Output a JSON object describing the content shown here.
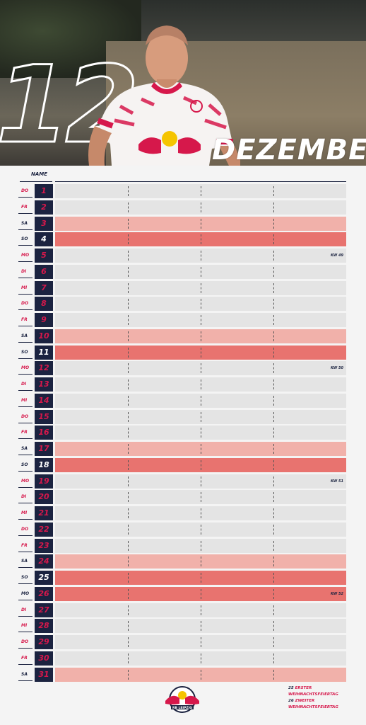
{
  "header": {
    "month_number": "12",
    "month_name": "DEZEMBER",
    "name_label": "NAME"
  },
  "days": [
    {
      "wd": "DO",
      "num": "1",
      "type": "wk"
    },
    {
      "wd": "FR",
      "num": "2",
      "type": "wk"
    },
    {
      "wd": "SA",
      "num": "3",
      "type": "sa"
    },
    {
      "wd": "SO",
      "num": "4",
      "type": "so"
    },
    {
      "wd": "MO",
      "num": "5",
      "type": "wk",
      "kw": "KW 49"
    },
    {
      "wd": "DI",
      "num": "6",
      "type": "wk"
    },
    {
      "wd": "MI",
      "num": "7",
      "type": "wk"
    },
    {
      "wd": "DO",
      "num": "8",
      "type": "wk"
    },
    {
      "wd": "FR",
      "num": "9",
      "type": "wk"
    },
    {
      "wd": "SA",
      "num": "10",
      "type": "sa"
    },
    {
      "wd": "SO",
      "num": "11",
      "type": "so"
    },
    {
      "wd": "MO",
      "num": "12",
      "type": "wk",
      "kw": "KW 50"
    },
    {
      "wd": "DI",
      "num": "13",
      "type": "wk"
    },
    {
      "wd": "MI",
      "num": "14",
      "type": "wk"
    },
    {
      "wd": "DO",
      "num": "15",
      "type": "wk"
    },
    {
      "wd": "FR",
      "num": "16",
      "type": "wk"
    },
    {
      "wd": "SA",
      "num": "17",
      "type": "sa"
    },
    {
      "wd": "SO",
      "num": "18",
      "type": "so"
    },
    {
      "wd": "MO",
      "num": "19",
      "type": "wk",
      "kw": "KW 51"
    },
    {
      "wd": "DI",
      "num": "20",
      "type": "wk"
    },
    {
      "wd": "MI",
      "num": "21",
      "type": "wk"
    },
    {
      "wd": "DO",
      "num": "22",
      "type": "wk"
    },
    {
      "wd": "FR",
      "num": "23",
      "type": "wk"
    },
    {
      "wd": "SA",
      "num": "24",
      "type": "sa"
    },
    {
      "wd": "SO",
      "num": "25",
      "type": "so"
    },
    {
      "wd": "MO",
      "num": "26",
      "type": "so",
      "kw": "KW 52"
    },
    {
      "wd": "DI",
      "num": "27",
      "type": "wk"
    },
    {
      "wd": "MI",
      "num": "28",
      "type": "wk"
    },
    {
      "wd": "DO",
      "num": "29",
      "type": "wk"
    },
    {
      "wd": "FR",
      "num": "30",
      "type": "wk"
    },
    {
      "wd": "SA",
      "num": "31",
      "type": "sa"
    }
  ],
  "holidays": [
    {
      "day": "25",
      "label": "ERSTER WEIHNACHTSFEIERTAG"
    },
    {
      "day": "26",
      "label": "ZWEITER WEIHNACHTSFEIERTAG"
    }
  ],
  "logo": {
    "text": "RB LEIPZIG",
    "name": "rb-leipzig-logo"
  },
  "colors": {
    "navy": "#1b2340",
    "red": "#d6184b",
    "weekday_bar": "#e4e4e4",
    "saturday_bar": "#f1b1aa",
    "sunday_bar": "#e8736f"
  }
}
